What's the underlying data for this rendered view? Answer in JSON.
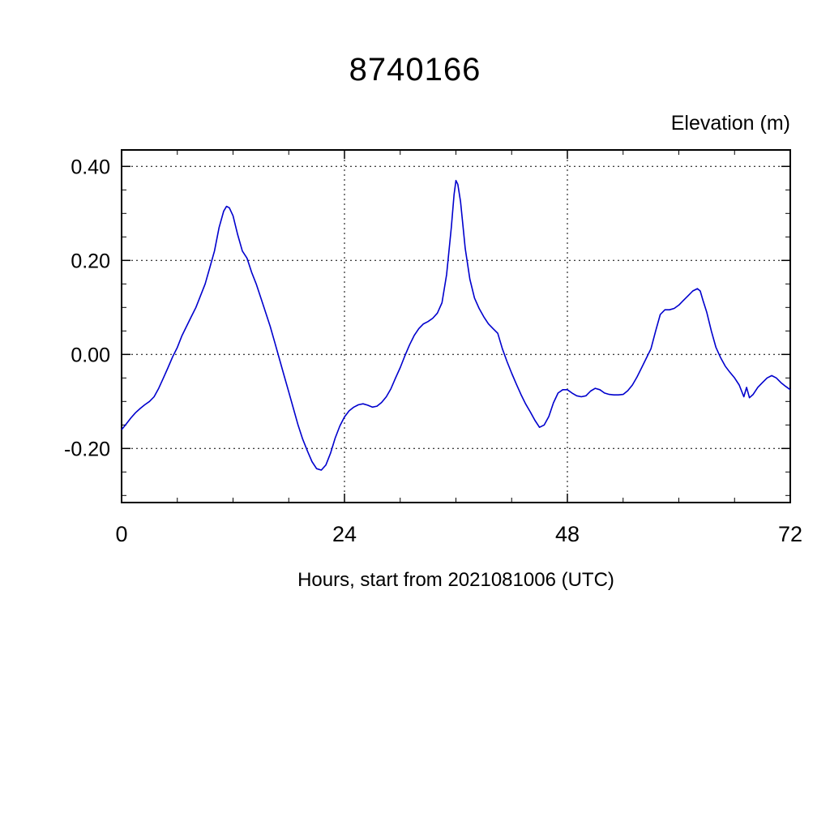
{
  "colors": {
    "line": "#0000cd",
    "frame": "#000000",
    "grid": "#000000"
  },
  "chart_data": {
    "type": "line",
    "title": "8740166",
    "xlabel": "Hours, start from 2021081006 (UTC)",
    "ylabel": "Elevation (m)",
    "xlim": [
      0,
      72
    ],
    "ylim": [
      -0.315,
      0.435
    ],
    "x_ticks": [
      0,
      24,
      48,
      72
    ],
    "x_tick_labels": [
      "0",
      "24",
      "48",
      "72"
    ],
    "x_minor_step": 6,
    "x_gridlines": [
      24,
      48
    ],
    "y_ticks": [
      -0.2,
      0.0,
      0.2,
      0.4
    ],
    "y_tick_labels": [
      "-0.20",
      "0.00",
      "0.20",
      "0.40"
    ],
    "y_minor_step": 0.05,
    "y_gridlines": [
      -0.2,
      0.0,
      0.2,
      0.4
    ],
    "grid": "dashed",
    "legend": "none",
    "series": [
      {
        "name": "elevation",
        "color": "#0000cd",
        "points": [
          [
            0,
            -0.16
          ],
          [
            0.5,
            -0.148
          ],
          [
            1,
            -0.135
          ],
          [
            1.5,
            -0.124
          ],
          [
            2,
            -0.115
          ],
          [
            2.5,
            -0.107
          ],
          [
            3,
            -0.1
          ],
          [
            3.5,
            -0.09
          ],
          [
            4,
            -0.072
          ],
          [
            4.5,
            -0.05
          ],
          [
            5,
            -0.028
          ],
          [
            5.5,
            -0.005
          ],
          [
            6,
            0.015
          ],
          [
            6.5,
            0.04
          ],
          [
            7,
            0.06
          ],
          [
            7.5,
            0.08
          ],
          [
            8,
            0.1
          ],
          [
            8.5,
            0.125
          ],
          [
            9,
            0.15
          ],
          [
            9.5,
            0.185
          ],
          [
            10,
            0.22
          ],
          [
            10.5,
            0.27
          ],
          [
            11,
            0.305
          ],
          [
            11.3,
            0.315
          ],
          [
            11.6,
            0.312
          ],
          [
            12,
            0.295
          ],
          [
            12.5,
            0.255
          ],
          [
            13,
            0.22
          ],
          [
            13.5,
            0.205
          ],
          [
            14,
            0.175
          ],
          [
            14.5,
            0.15
          ],
          [
            15,
            0.12
          ],
          [
            15.5,
            0.09
          ],
          [
            16,
            0.06
          ],
          [
            16.5,
            0.025
          ],
          [
            17,
            -0.01
          ],
          [
            17.5,
            -0.045
          ],
          [
            18,
            -0.08
          ],
          [
            18.5,
            -0.115
          ],
          [
            19,
            -0.15
          ],
          [
            19.5,
            -0.18
          ],
          [
            20,
            -0.205
          ],
          [
            20.5,
            -0.228
          ],
          [
            21,
            -0.243
          ],
          [
            21.5,
            -0.246
          ],
          [
            22,
            -0.235
          ],
          [
            22.5,
            -0.21
          ],
          [
            23,
            -0.178
          ],
          [
            23.5,
            -0.152
          ],
          [
            24,
            -0.133
          ],
          [
            24.5,
            -0.12
          ],
          [
            25,
            -0.112
          ],
          [
            25.5,
            -0.107
          ],
          [
            26,
            -0.105
          ],
          [
            26.5,
            -0.108
          ],
          [
            27,
            -0.112
          ],
          [
            27.5,
            -0.11
          ],
          [
            28,
            -0.102
          ],
          [
            28.5,
            -0.09
          ],
          [
            29,
            -0.073
          ],
          [
            29.5,
            -0.05
          ],
          [
            30,
            -0.028
          ],
          [
            30.5,
            -0.003
          ],
          [
            31,
            0.02
          ],
          [
            31.5,
            0.04
          ],
          [
            32,
            0.055
          ],
          [
            32.5,
            0.065
          ],
          [
            33,
            0.07
          ],
          [
            33.5,
            0.077
          ],
          [
            34,
            0.088
          ],
          [
            34.5,
            0.11
          ],
          [
            35,
            0.17
          ],
          [
            35.5,
            0.27
          ],
          [
            35.8,
            0.34
          ],
          [
            36,
            0.37
          ],
          [
            36.2,
            0.362
          ],
          [
            36.5,
            0.325
          ],
          [
            37,
            0.225
          ],
          [
            37.5,
            0.16
          ],
          [
            38,
            0.12
          ],
          [
            38.5,
            0.098
          ],
          [
            39,
            0.08
          ],
          [
            39.5,
            0.065
          ],
          [
            40,
            0.055
          ],
          [
            40.5,
            0.045
          ],
          [
            41,
            0.012
          ],
          [
            41.5,
            -0.015
          ],
          [
            42,
            -0.04
          ],
          [
            42.5,
            -0.063
          ],
          [
            43,
            -0.085
          ],
          [
            43.5,
            -0.105
          ],
          [
            44,
            -0.122
          ],
          [
            44.5,
            -0.14
          ],
          [
            45,
            -0.155
          ],
          [
            45.5,
            -0.15
          ],
          [
            46,
            -0.132
          ],
          [
            46.5,
            -0.103
          ],
          [
            47,
            -0.082
          ],
          [
            47.5,
            -0.075
          ],
          [
            48,
            -0.075
          ],
          [
            48.5,
            -0.082
          ],
          [
            49,
            -0.088
          ],
          [
            49.5,
            -0.09
          ],
          [
            50,
            -0.088
          ],
          [
            50.5,
            -0.078
          ],
          [
            51,
            -0.072
          ],
          [
            51.5,
            -0.075
          ],
          [
            52,
            -0.082
          ],
          [
            52.5,
            -0.085
          ],
          [
            53,
            -0.086
          ],
          [
            53.5,
            -0.086
          ],
          [
            54,
            -0.085
          ],
          [
            54.5,
            -0.077
          ],
          [
            55,
            -0.065
          ],
          [
            55.5,
            -0.048
          ],
          [
            56,
            -0.028
          ],
          [
            56.5,
            -0.008
          ],
          [
            57,
            0.012
          ],
          [
            57.5,
            0.05
          ],
          [
            58,
            0.085
          ],
          [
            58.5,
            0.095
          ],
          [
            59,
            0.095
          ],
          [
            59.5,
            0.098
          ],
          [
            60,
            0.105
          ],
          [
            60.5,
            0.115
          ],
          [
            61,
            0.125
          ],
          [
            61.5,
            0.135
          ],
          [
            62,
            0.14
          ],
          [
            62.3,
            0.135
          ],
          [
            62.6,
            0.115
          ],
          [
            63,
            0.09
          ],
          [
            63.5,
            0.05
          ],
          [
            64,
            0.015
          ],
          [
            64.5,
            -0.007
          ],
          [
            65,
            -0.025
          ],
          [
            65.5,
            -0.038
          ],
          [
            66,
            -0.05
          ],
          [
            66.5,
            -0.065
          ],
          [
            67,
            -0.09
          ],
          [
            67.3,
            -0.07
          ],
          [
            67.6,
            -0.092
          ],
          [
            68,
            -0.085
          ],
          [
            68.5,
            -0.07
          ],
          [
            69,
            -0.06
          ],
          [
            69.5,
            -0.05
          ],
          [
            70,
            -0.045
          ],
          [
            70.5,
            -0.05
          ],
          [
            71,
            -0.06
          ],
          [
            71.5,
            -0.068
          ],
          [
            72,
            -0.075
          ]
        ]
      }
    ]
  }
}
